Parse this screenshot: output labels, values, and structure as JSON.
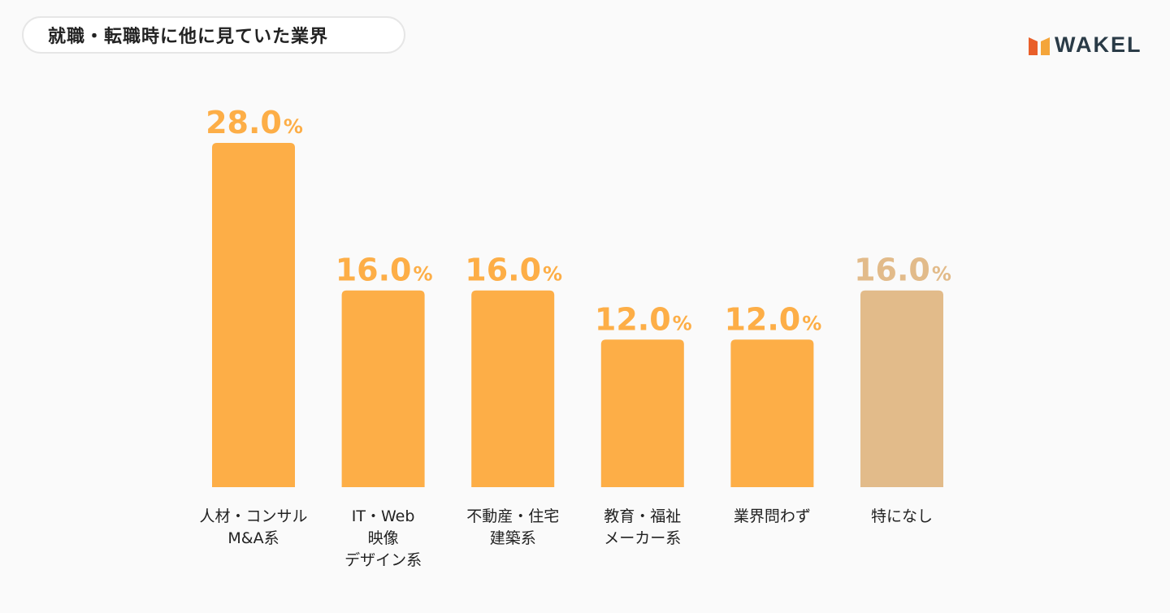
{
  "header": {
    "title": "就職・転職時に他に見ていた業界",
    "brand": "WAKEL"
  },
  "colors": {
    "bar": "#fdae47",
    "bar_other": "#e2bb8a",
    "label_value": "#fdae47",
    "label_value_other": "#e2bb8a",
    "category_text": "#222222",
    "brand_text": "#2a3b47",
    "brand_mark_left": "#e95f2a",
    "brand_mark_right": "#f4a53a"
  },
  "chart_data": {
    "type": "bar",
    "title": "就職・転職時に他に見ていた業界",
    "xlabel": "",
    "ylabel": "",
    "ylim": [
      0,
      28
    ],
    "grid": false,
    "legend": "none",
    "value_suffix": "%",
    "categories": [
      [
        "人材・コンサル",
        "M&A系"
      ],
      [
        "IT・Web",
        "映像",
        "デザイン系"
      ],
      [
        "不動産・住宅",
        "建築系"
      ],
      [
        "教育・福祉",
        "メーカー系"
      ],
      [
        "業界問わず"
      ],
      [
        "特になし"
      ]
    ],
    "values": [
      28.0,
      16.0,
      16.0,
      12.0,
      12.0,
      16.0
    ],
    "value_labels": [
      "28.0",
      "16.0",
      "16.0",
      "12.0",
      "12.0",
      "16.0"
    ],
    "highlight": [
      false,
      false,
      false,
      false,
      false,
      true
    ]
  }
}
